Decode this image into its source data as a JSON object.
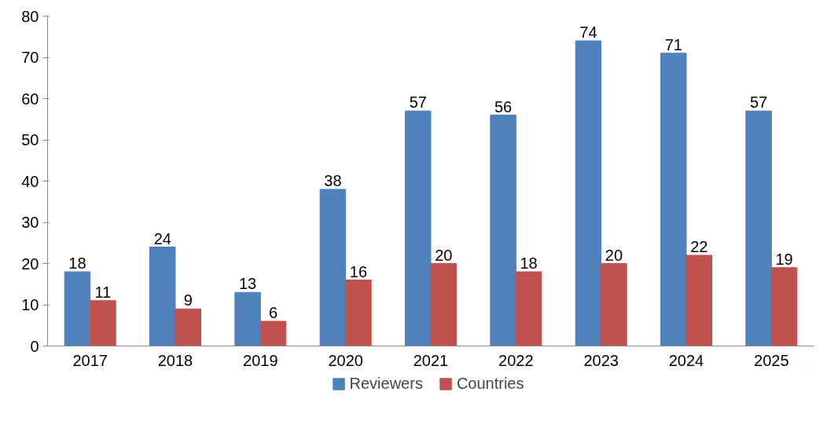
{
  "chart_data": {
    "type": "bar",
    "categories": [
      "2017",
      "2018",
      "2019",
      "2020",
      "2021",
      "2022",
      "2023",
      "2024",
      "2025"
    ],
    "series": [
      {
        "name": "Reviewers",
        "color": "#4f81bd",
        "values": [
          18,
          24,
          13,
          38,
          57,
          56,
          74,
          71,
          57
        ]
      },
      {
        "name": "Countries",
        "color": "#c0504d",
        "values": [
          11,
          9,
          6,
          16,
          20,
          18,
          20,
          22,
          19
        ]
      }
    ],
    "ylim": [
      0,
      80
    ],
    "yticks": [
      0,
      10,
      20,
      30,
      40,
      50,
      60,
      70,
      80
    ],
    "grid": false,
    "legend": "bottom",
    "data_labels": true
  }
}
